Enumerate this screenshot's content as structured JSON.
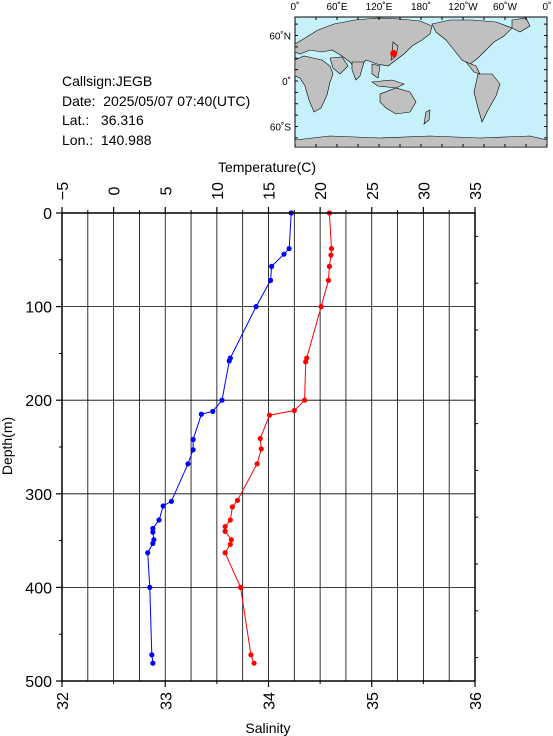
{
  "info": {
    "callsign": "Callsign:JEGB",
    "date": "Date:  2025/05/07 07:40(UTC)",
    "lat": "Lat.:   36.316",
    "lon": "Lon.:  140.988"
  },
  "map": {
    "top_labels": [
      "0˚",
      "60˚E",
      "120˚E",
      "180˚",
      "120˚W",
      "60˚W",
      "0˚"
    ],
    "left_labels": [
      "60˚N",
      "0˚",
      "60˚S"
    ],
    "ocean_color": "#c6f1fa",
    "land_color": "#c0c0c0",
    "marker_color": "#ff0000",
    "marker": {
      "lon": 140.988,
      "lat": 36.316
    }
  },
  "chart_data": {
    "type": "line",
    "ylabel": "Depth(m)",
    "ylim": [
      500,
      0
    ],
    "y_ticks": [
      "0",
      "100",
      "200",
      "300",
      "400",
      "500"
    ],
    "top_axis": {
      "label": "Temperature(C)",
      "range": [
        -5,
        35
      ],
      "ticks": [
        "−5",
        "0",
        "5",
        "10",
        "15",
        "20",
        "25",
        "30",
        "35"
      ]
    },
    "bottom_axis": {
      "label": "Salinity",
      "range": [
        32,
        36
      ],
      "ticks": [
        "32",
        "33",
        "34",
        "35",
        "36"
      ]
    },
    "grid": true,
    "series": [
      {
        "color": "#0000ff",
        "axis": "bottom",
        "points": [
          [
            34.22,
            0
          ],
          [
            34.2,
            38
          ],
          [
            34.15,
            44
          ],
          [
            34.03,
            57
          ],
          [
            34.02,
            72
          ],
          [
            33.88,
            100
          ],
          [
            33.63,
            155
          ],
          [
            33.62,
            158
          ],
          [
            33.55,
            200
          ],
          [
            33.46,
            212
          ],
          [
            33.35,
            215
          ],
          [
            33.27,
            242
          ],
          [
            33.27,
            253
          ],
          [
            33.22,
            268
          ],
          [
            33.06,
            308
          ],
          [
            32.98,
            313
          ],
          [
            32.94,
            328
          ],
          [
            32.88,
            337
          ],
          [
            32.88,
            341
          ],
          [
            32.89,
            349
          ],
          [
            32.88,
            353
          ],
          [
            32.83,
            363
          ],
          [
            32.85,
            400
          ],
          [
            32.87,
            472
          ],
          [
            32.88,
            481
          ]
        ]
      },
      {
        "color": "#ff0000",
        "axis": "top",
        "points": [
          [
            20.9,
            0
          ],
          [
            21.1,
            38
          ],
          [
            21.05,
            45
          ],
          [
            20.9,
            57
          ],
          [
            20.8,
            72
          ],
          [
            20.1,
            100
          ],
          [
            18.7,
            155
          ],
          [
            18.6,
            159
          ],
          [
            18.5,
            200
          ],
          [
            17.5,
            211
          ],
          [
            15.1,
            216
          ],
          [
            14.2,
            241
          ],
          [
            14.3,
            252
          ],
          [
            13.9,
            268
          ],
          [
            12.0,
            307
          ],
          [
            11.5,
            314
          ],
          [
            11.3,
            328
          ],
          [
            10.8,
            335
          ],
          [
            10.8,
            340
          ],
          [
            11.4,
            349
          ],
          [
            11.3,
            354
          ],
          [
            10.8,
            363
          ],
          [
            12.3,
            400
          ],
          [
            13.3,
            472
          ],
          [
            13.6,
            481
          ]
        ]
      }
    ]
  }
}
